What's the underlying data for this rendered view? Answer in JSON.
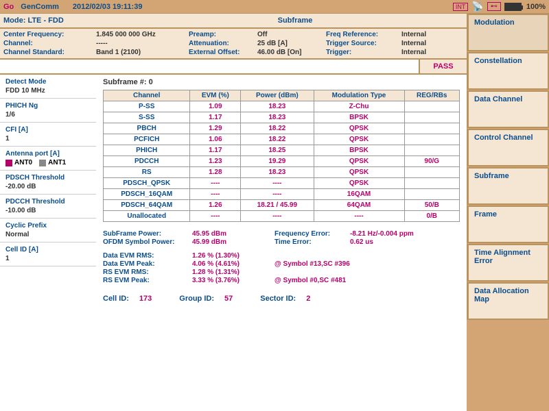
{
  "topbar": {
    "logo": "Go",
    "title": "GenComm",
    "datetime": "2012/02/03 19:11:39",
    "int_label": "INT",
    "battery_pct": "100%"
  },
  "mode_row": {
    "mode": "Mode: LTE - FDD",
    "title": "Subframe"
  },
  "info": {
    "cf_label": "Center Frequency:",
    "cf_val": "1.845 000 000 GHz",
    "ch_label": "Channel:",
    "ch_val": "-----",
    "cs_label": "Channel Standard:",
    "cs_val": "Band 1 (2100)",
    "preamp_label": "Preamp:",
    "preamp_val": "Off",
    "atten_label": "Attenuation:",
    "atten_val": "25 dB  [A]",
    "extoff_label": "External Offset:",
    "extoff_val": "46.00 dB  [On]",
    "freqref_label": "Freq Reference:",
    "freqref_val": "Internal",
    "trigsrc_label": "Trigger Source:",
    "trigsrc_val": "Internal",
    "trig_label": "Trigger:",
    "trig_val": "Internal"
  },
  "pass": "PASS",
  "params": {
    "detect_label": "Detect Mode",
    "detect_val": "FDD 10 MHz",
    "phich_label": "PHICH Ng",
    "phich_val": "1/6",
    "cfi_label": "CFI [A]",
    "cfi_val": "1",
    "ant_label": "Antenna port [A]",
    "ant0": "ANT0",
    "ant0_color": "#b8006b",
    "ant1": "ANT1",
    "ant1_color": "#888888",
    "pdsch_label": "PDSCH Threshold",
    "pdsch_val": "-20.00 dB",
    "pdcch_label": "PDCCH Threshold",
    "pdcch_val": "-10.00 dB",
    "cyclic_label": "Cyclic Prefix",
    "cyclic_val": "Normal",
    "cellid_label": "Cell ID [A]",
    "cellid_val": "1"
  },
  "subframe_header": "Subframe #: 0",
  "table": {
    "headers": [
      "Channel",
      "EVM (%)",
      "Power (dBm)",
      "Modulation Type",
      "REG/RBs"
    ],
    "rows": [
      {
        "ch": "P-SS",
        "evm": "1.09",
        "pwr": "18.23",
        "mod": "Z-Chu",
        "reg": ""
      },
      {
        "ch": "S-SS",
        "evm": "1.17",
        "pwr": "18.23",
        "mod": "BPSK",
        "reg": ""
      },
      {
        "ch": "PBCH",
        "evm": "1.29",
        "pwr": "18.22",
        "mod": "QPSK",
        "reg": ""
      },
      {
        "ch": "PCFICH",
        "evm": "1.06",
        "pwr": "18.22",
        "mod": "QPSK",
        "reg": ""
      },
      {
        "ch": "PHICH",
        "evm": "1.17",
        "pwr": "18.25",
        "mod": "BPSK",
        "reg": ""
      },
      {
        "ch": "PDCCH",
        "evm": "1.23",
        "pwr": "19.29",
        "mod": "QPSK",
        "reg": "90/G"
      },
      {
        "ch": "RS",
        "evm": "1.28",
        "pwr": "18.23",
        "mod": "QPSK",
        "reg": ""
      },
      {
        "ch": "PDSCH_QPSK",
        "evm": "----",
        "pwr": "----",
        "mod": "QPSK",
        "reg": ""
      },
      {
        "ch": "PDSCH_16QAM",
        "evm": "----",
        "pwr": "----",
        "mod": "16QAM",
        "reg": ""
      },
      {
        "ch": "PDSCH_64QAM",
        "evm": "1.26",
        "pwr": "18.21 / 45.99",
        "mod": "64QAM",
        "reg": "50/B"
      },
      {
        "ch": "Unallocated",
        "evm": "----",
        "pwr": "----",
        "mod": "----",
        "reg": "0/B"
      }
    ]
  },
  "metrics": {
    "subframe_power_label": "SubFrame Power:",
    "subframe_power_val": "45.95 dBm",
    "ofdm_power_label": "OFDM Symbol Power:",
    "ofdm_power_val": "45.99 dBm",
    "freq_err_label": "Frequency Error:",
    "freq_err_val": "-8.21 Hz/-0.004 ppm",
    "time_err_label": "Time Error:",
    "time_err_val": "0.62 us",
    "data_evm_rms_label": "Data EVM RMS:",
    "data_evm_rms_val": "1.26 % (1.30%)",
    "data_evm_peak_label": "Data EVM Peak:",
    "data_evm_peak_val": "4.06 % (4.61%)",
    "data_evm_peak_extra": "@ Symbol #13,SC #396",
    "rs_evm_rms_label": "RS EVM RMS:",
    "rs_evm_rms_val": "1.28 % (1.31%)",
    "rs_evm_peak_label": "RS EVM Peak:",
    "rs_evm_peak_val": "3.33 % (3.76%)",
    "rs_evm_peak_extra": "@ Symbol #0,SC #481"
  },
  "ids": {
    "cell_label": "Cell ID:",
    "cell_val": "173",
    "group_label": "Group ID:",
    "group_val": "57",
    "sector_label": "Sector ID:",
    "sector_val": "2"
  },
  "menu": {
    "modulation": "Modulation",
    "constellation": "Constellation",
    "data_channel": "Data Channel",
    "control_channel": "Control Channel",
    "subframe": "Subframe",
    "frame": "Frame",
    "time_align": "Time Alignment Error",
    "data_alloc": "Data Allocation Map"
  }
}
